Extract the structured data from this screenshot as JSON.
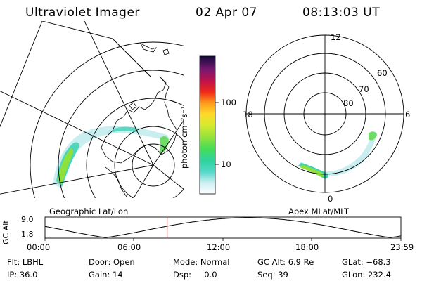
{
  "header": {
    "title": "Ultraviolet Imager",
    "date": "02 Apr 07",
    "time": "08:13:03 UT"
  },
  "colorbar": {
    "unit_label": "photon cm⁻²s⁻¹",
    "ticks": [
      "100",
      "10"
    ]
  },
  "geo_panel": {
    "caption": "Geographic Lat/Lon"
  },
  "apex_panel": {
    "caption": "Apex MLat/MLT",
    "mlt_labels": [
      "12",
      "18",
      "6",
      "0"
    ],
    "lat_labels": [
      "60",
      "70",
      "80"
    ]
  },
  "timeline": {
    "ylabel": "GC Alt",
    "y_ticks": [
      "9.0",
      "1.8"
    ],
    "x_ticks": [
      "00:00",
      "06:00",
      "12:00",
      "18:00",
      "23:59"
    ],
    "current_time_fraction": 0.343
  },
  "status": {
    "filter": "Flt: LBHL",
    "ip": "IP: 36.0",
    "door": "Door: Open",
    "gain": "Gain: 14",
    "mode": "Mode: Normal",
    "dsp": "Dsp:     0.0",
    "gc_alt": "GC Alt: 6.9 Re",
    "seq": "Seq: 39",
    "glat": "GLat: −68.3",
    "glon": "GLon: 232.4"
  },
  "colors": {
    "timeline_marker": "#e00000",
    "aurora_low": "#c8eef0",
    "aurora_mid": "#3fd4b4",
    "aurora_high": "#8ee03a"
  }
}
